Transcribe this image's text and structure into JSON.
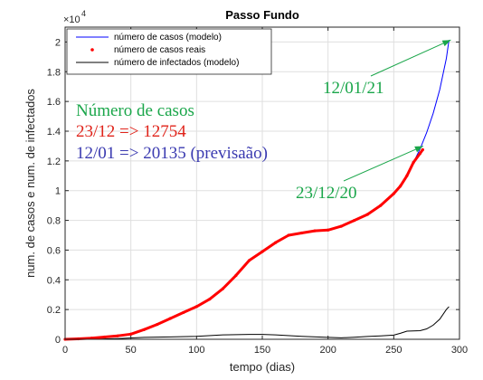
{
  "chart_data": {
    "type": "line",
    "title": "Passo Fundo",
    "xlabel": "tempo (dias)",
    "ylabel": "num. de casos e num. de infectados",
    "y_exponent_label": "×10",
    "y_exponent_power": "4",
    "xlim": [
      0,
      300
    ],
    "ylim": [
      0,
      21000
    ],
    "x_ticks": [
      0,
      50,
      100,
      150,
      200,
      250,
      300
    ],
    "y_ticks": [
      0,
      2000,
      4000,
      6000,
      8000,
      10000,
      12000,
      14000,
      16000,
      18000,
      20000
    ],
    "y_tick_labels": [
      "0",
      "0.2",
      "0.4",
      "0.6",
      "0.8",
      "1",
      "1.2",
      "1.4",
      "1.6",
      "1.8",
      "2"
    ],
    "grid": true,
    "legend_position": "top-left",
    "series": [
      {
        "name": "número de casos (modelo)",
        "style": "line",
        "color": "#0000ff",
        "x": [
          255,
          260,
          265,
          270,
          275,
          280,
          285,
          290,
          292
        ],
        "y": [
          10300,
          11000,
          11900,
          12800,
          13900,
          15200,
          16800,
          18900,
          20135
        ]
      },
      {
        "name": "número de casos reais",
        "style": "dots",
        "color": "#ff0000",
        "x": [
          0,
          10,
          20,
          30,
          40,
          50,
          60,
          70,
          80,
          90,
          100,
          110,
          120,
          130,
          140,
          150,
          160,
          170,
          180,
          190,
          200,
          210,
          220,
          230,
          240,
          250,
          255,
          260,
          265,
          270,
          272
        ],
        "y": [
          0,
          30,
          80,
          150,
          230,
          350,
          650,
          1000,
          1400,
          1800,
          2200,
          2700,
          3400,
          4300,
          5300,
          5900,
          6500,
          7000,
          7150,
          7300,
          7350,
          7600,
          8000,
          8400,
          9000,
          9800,
          10300,
          11000,
          11900,
          12500,
          12754
        ]
      },
      {
        "name": "número de infectados (modelo)",
        "style": "line",
        "color": "#000000",
        "x": [
          0,
          20,
          40,
          60,
          80,
          100,
          120,
          140,
          150,
          160,
          180,
          200,
          210,
          220,
          230,
          240,
          250,
          255,
          260,
          265,
          270,
          275,
          280,
          285,
          290,
          292
        ],
        "y": [
          0,
          0,
          50,
          130,
          160,
          200,
          300,
          330,
          330,
          300,
          200,
          130,
          100,
          140,
          190,
          230,
          280,
          400,
          550,
          560,
          580,
          700,
          950,
          1350,
          2000,
          2200
        ]
      }
    ],
    "annotations": {
      "arrow_label_top": "12/01/21",
      "arrow_label_bottom": "23/12/20",
      "arrow_top_target": {
        "x": 292,
        "y": 20135
      },
      "arrow_bottom_target": {
        "x": 271,
        "y": 12754
      },
      "text_heading": "Número de casos",
      "text_line_red": "23/12 => 12754",
      "text_line_blue": "12/01 => 20135 (previsaão)"
    },
    "colors": {
      "annotation_green": "#1aa64a",
      "annotation_red": "#e0231a",
      "annotation_blue": "#3a3ab0",
      "grid": "#dfdfdf",
      "axis": "#262626"
    }
  }
}
